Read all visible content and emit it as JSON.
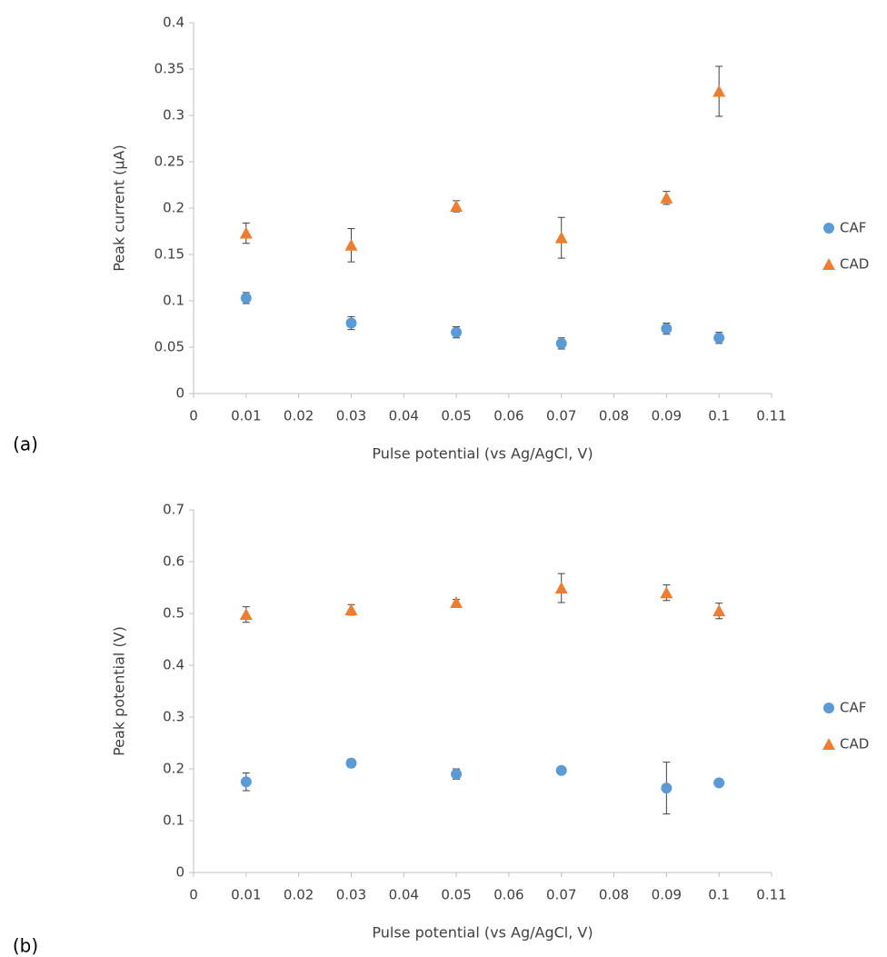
{
  "chart_data": [
    {
      "type": "scatter",
      "label": "(a)",
      "x_label": "Pulse potential (vs Ag/AgCl, V)",
      "y_label": "Peak current (μA)",
      "xlim": [
        0,
        0.11
      ],
      "xticks": [
        0,
        0.01,
        0.02,
        0.03,
        0.04,
        0.05,
        0.06,
        0.07,
        0.08,
        0.09,
        0.1,
        0.11
      ],
      "ylim": [
        0,
        0.4
      ],
      "yticks": [
        0,
        0.05,
        0.1,
        0.15,
        0.2,
        0.25,
        0.3,
        0.35,
        0.4
      ],
      "series": [
        {
          "name": "CAF",
          "color": "#5b9bd5",
          "marker": "circle",
          "x": [
            0.01,
            0.03,
            0.05,
            0.07,
            0.09,
            0.1
          ],
          "values": [
            0.103,
            0.076,
            0.066,
            0.054,
            0.07,
            0.06
          ],
          "errors": [
            0.006,
            0.007,
            0.006,
            0.006,
            0.006,
            0.006
          ]
        },
        {
          "name": "CAD",
          "color": "#ed7d31",
          "marker": "triangle",
          "x": [
            0.01,
            0.03,
            0.05,
            0.07,
            0.09,
            0.1
          ],
          "values": [
            0.173,
            0.16,
            0.202,
            0.168,
            0.211,
            0.326
          ],
          "errors": [
            0.011,
            0.018,
            0.006,
            0.022,
            0.007,
            0.027
          ]
        }
      ]
    },
    {
      "type": "scatter",
      "label": "(b)",
      "x_label": "Pulse potential (vs Ag/AgCl, V)",
      "y_label": "Peak potential (V)",
      "xlim": [
        0,
        0.11
      ],
      "xticks": [
        0,
        0.01,
        0.02,
        0.03,
        0.04,
        0.05,
        0.06,
        0.07,
        0.08,
        0.09,
        0.1,
        0.11
      ],
      "ylim": [
        0,
        0.7
      ],
      "yticks": [
        0,
        0.1,
        0.2,
        0.3,
        0.4,
        0.5,
        0.6,
        0.7
      ],
      "series": [
        {
          "name": "CAF",
          "color": "#5b9bd5",
          "marker": "circle",
          "x": [
            0.01,
            0.03,
            0.05,
            0.07,
            0.09,
            0.1
          ],
          "values": [
            0.175,
            0.211,
            0.19,
            0.197,
            0.163,
            0.173
          ],
          "errors": [
            0.017,
            0.008,
            0.01,
            0,
            0.05,
            0.005
          ]
        },
        {
          "name": "CAD",
          "color": "#ed7d31",
          "marker": "triangle",
          "x": [
            0.01,
            0.03,
            0.05,
            0.07,
            0.09,
            0.1
          ],
          "values": [
            0.498,
            0.507,
            0.521,
            0.549,
            0.54,
            0.505
          ],
          "errors": [
            0.015,
            0.01,
            0.006,
            0.028,
            0.015,
            0.015
          ]
        }
      ]
    }
  ]
}
